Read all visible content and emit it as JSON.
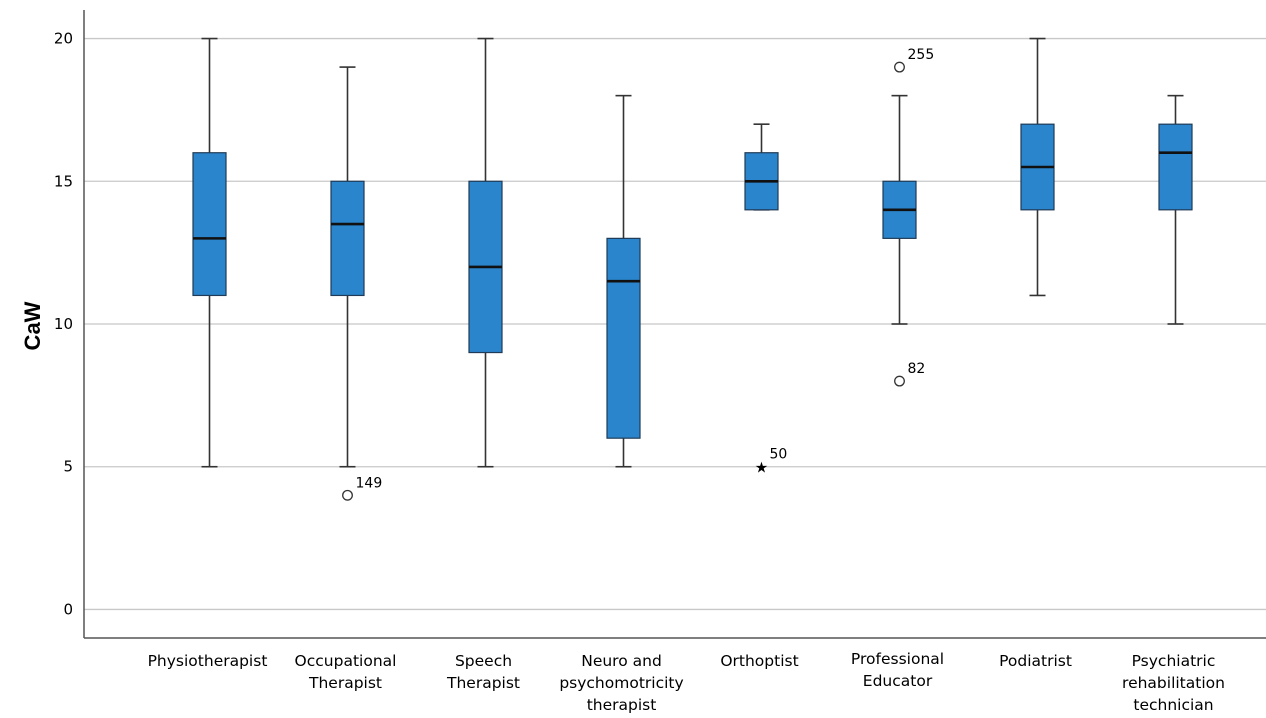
{
  "chart_data": {
    "type": "boxplot",
    "ylabel": "CaW",
    "ylim": [
      -1,
      21
    ],
    "yticks": [
      0,
      5,
      10,
      15,
      20
    ],
    "grid": true,
    "colors": {
      "box": "#2a85cc",
      "box_edge": "#1f3b57",
      "whisker": "#333333",
      "grid": "#c8c8c8",
      "axis": "#555555"
    },
    "categories": [
      {
        "label_lines": [
          "Physiotherapist"
        ],
        "min": 5,
        "q1": 11,
        "median": 13,
        "q3": 16,
        "max": 20,
        "outliers": []
      },
      {
        "label_lines": [
          "Occupational",
          "Therapist"
        ],
        "min": 5,
        "q1": 11,
        "median": 13.5,
        "q3": 15,
        "max": 19,
        "outliers": [
          {
            "value": 4,
            "marker": "circle",
            "label": "149"
          }
        ]
      },
      {
        "label_lines": [
          "Speech",
          "Therapist"
        ],
        "min": 5,
        "q1": 9,
        "median": 12,
        "q3": 15,
        "max": 20,
        "outliers": []
      },
      {
        "label_lines": [
          "Neuro and",
          "psychomotricity",
          "therapist"
        ],
        "min": 5,
        "q1": 6,
        "median": 11.5,
        "q3": 13,
        "max": 18,
        "outliers": []
      },
      {
        "label_lines": [
          "Orthoptist"
        ],
        "min": 14,
        "q1": 14,
        "median": 15,
        "q3": 16,
        "max": 17,
        "outliers": [
          {
            "value": 5,
            "marker": "star",
            "label": "50"
          }
        ]
      },
      {
        "label_lines": [
          "Professional",
          "Educator"
        ],
        "min": 10,
        "q1": 13,
        "median": 14,
        "q3": 15,
        "max": 18,
        "outliers": [
          {
            "value": 19,
            "marker": "circle",
            "label": "255"
          },
          {
            "value": 8,
            "marker": "circle",
            "label": "82"
          }
        ]
      },
      {
        "label_lines": [
          "Podiatrist"
        ],
        "min": 11,
        "q1": 14,
        "median": 15.5,
        "q3": 17,
        "max": 20,
        "outliers": []
      },
      {
        "label_lines": [
          "Psychiatric",
          "rehabilitation",
          "technician"
        ],
        "min": 10,
        "q1": 14,
        "median": 16,
        "q3": 17,
        "max": 18,
        "outliers": []
      }
    ]
  }
}
